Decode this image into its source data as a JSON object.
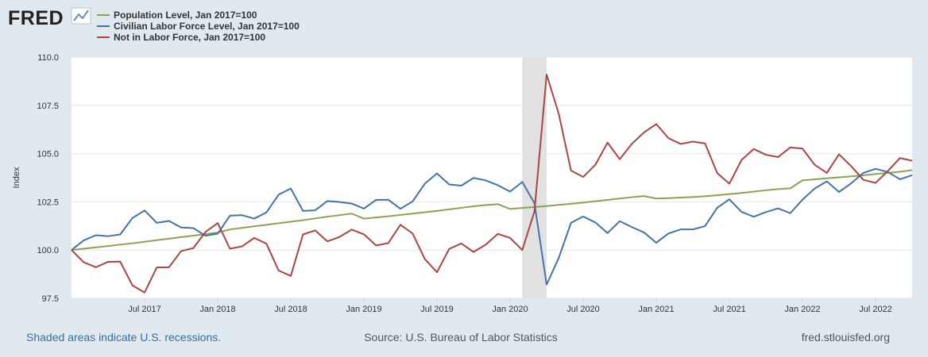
{
  "brand": {
    "logo_text": "FRED"
  },
  "footer": {
    "recession_note": "Shaded areas indicate U.S. recessions.",
    "source": "Source: U.S. Bureau of Labor Statistics",
    "site": "fred.stlouisfed.org"
  },
  "colors": {
    "population": "#8ba454",
    "labor_force": "#4572a7",
    "not_in_labor_force": "#aa4643",
    "recession": "#e1e1e1",
    "grid": "#e6e6e6",
    "background": "#e1e9f0",
    "plot_background": "#ffffff",
    "footer_link": "#3b6aa0",
    "footer_text": "#555555"
  },
  "chart_data": {
    "type": "line",
    "title": "",
    "xlabel": "",
    "ylabel": "Index",
    "ylim": [
      97.5,
      110.0
    ],
    "yticks": [
      97.5,
      100.0,
      102.5,
      105.0,
      107.5,
      110.0
    ],
    "ytick_labels": [
      "97.5",
      "100.0",
      "102.5",
      "105.0",
      "107.5",
      "110.0"
    ],
    "x_start": "Jan 2017",
    "x_end": "Oct 2022",
    "x_ticks": [
      {
        "month_index": 6,
        "label": "Jul 2017"
      },
      {
        "month_index": 12,
        "label": "Jan 2018"
      },
      {
        "month_index": 18,
        "label": "Jul 2018"
      },
      {
        "month_index": 24,
        "label": "Jan 2019"
      },
      {
        "month_index": 30,
        "label": "Jul 2019"
      },
      {
        "month_index": 36,
        "label": "Jan 2020"
      },
      {
        "month_index": 42,
        "label": "Jul 2020"
      },
      {
        "month_index": 48,
        "label": "Jan 2021"
      },
      {
        "month_index": 54,
        "label": "Jul 2021"
      },
      {
        "month_index": 60,
        "label": "Jan 2022"
      },
      {
        "month_index": 66,
        "label": "Jul 2022"
      }
    ],
    "recession": {
      "start_month_index": 37,
      "end_month_index": 39
    },
    "legend_position": "top-left",
    "series": [
      {
        "name": "Population Level, Jan 2017=100",
        "key": "population",
        "values": [
          100.0,
          100.07,
          100.14,
          100.21,
          100.28,
          100.35,
          100.43,
          100.51,
          100.59,
          100.67,
          100.75,
          100.83,
          100.91,
          101.07,
          101.15,
          101.23,
          101.31,
          101.39,
          101.47,
          101.55,
          101.64,
          101.73,
          101.81,
          101.89,
          101.63,
          101.69,
          101.75,
          101.82,
          101.89,
          101.96,
          102.03,
          102.11,
          102.19,
          102.27,
          102.33,
          102.38,
          102.13,
          102.18,
          102.23,
          102.28,
          102.34,
          102.4,
          102.46,
          102.53,
          102.6,
          102.67,
          102.74,
          102.8,
          102.67,
          102.69,
          102.72,
          102.75,
          102.79,
          102.84,
          102.9,
          102.96,
          103.03,
          103.1,
          103.16,
          103.2,
          103.61,
          103.67,
          103.72,
          103.77,
          103.82,
          103.88,
          103.94,
          104.0,
          104.06,
          104.14
        ]
      },
      {
        "name": "Civilian Labor Force Level, Jan 2017=100",
        "key": "labor_force",
        "values": [
          100.0,
          100.5,
          100.77,
          100.72,
          100.81,
          101.66,
          102.05,
          101.41,
          101.51,
          101.17,
          101.14,
          100.74,
          100.85,
          101.78,
          101.81,
          101.63,
          101.95,
          102.87,
          103.19,
          102.03,
          102.06,
          102.54,
          102.49,
          102.41,
          102.15,
          102.6,
          102.61,
          102.14,
          102.52,
          103.44,
          103.97,
          103.4,
          103.34,
          103.74,
          103.61,
          103.36,
          103.03,
          103.53,
          102.43,
          98.21,
          99.6,
          101.41,
          101.74,
          101.43,
          100.88,
          101.5,
          101.19,
          100.91,
          100.38,
          100.86,
          101.07,
          101.07,
          101.24,
          102.19,
          102.63,
          101.98,
          101.73,
          101.97,
          102.16,
          101.91,
          102.61,
          103.19,
          103.56,
          103.01,
          103.46,
          104.0,
          104.21,
          104.05,
          103.67,
          103.88
        ]
      },
      {
        "name": "Not in Labor Force, Jan 2017=100",
        "key": "not_in_labor_force",
        "values": [
          100.0,
          99.37,
          99.11,
          99.39,
          99.4,
          98.17,
          97.8,
          99.1,
          99.11,
          99.95,
          100.1,
          100.94,
          101.4,
          100.07,
          100.19,
          100.63,
          100.33,
          98.94,
          98.66,
          100.81,
          101.02,
          100.45,
          100.68,
          101.06,
          100.82,
          100.24,
          100.36,
          101.31,
          100.86,
          99.54,
          98.85,
          100.06,
          100.34,
          99.9,
          100.28,
          100.84,
          100.63,
          100.0,
          102.0,
          109.1,
          107.05,
          104.12,
          103.79,
          104.42,
          105.57,
          104.71,
          105.51,
          106.1,
          106.53,
          105.8,
          105.5,
          105.62,
          105.53,
          103.99,
          103.44,
          104.67,
          105.24,
          104.94,
          104.82,
          105.32,
          105.26,
          104.42,
          104.0,
          104.96,
          104.35,
          103.64,
          103.48,
          104.09,
          104.77,
          104.63
        ]
      }
    ]
  }
}
